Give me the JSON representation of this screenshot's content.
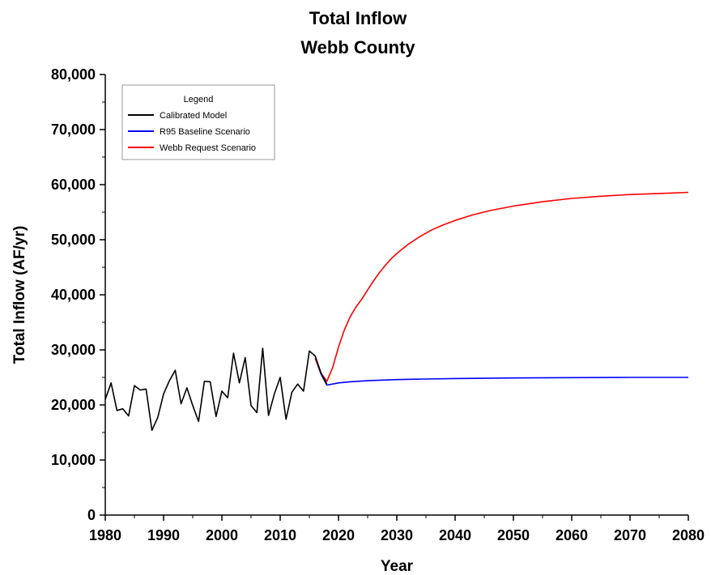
{
  "chart_data": {
    "type": "line",
    "title": [
      "Total Inflow",
      "Webb County"
    ],
    "xlabel": "Year",
    "ylabel": "Total Inflow (AF/yr)",
    "xlim": [
      1980,
      2080
    ],
    "ylim": [
      0,
      80000
    ],
    "x_ticks": [
      1980,
      1990,
      2000,
      2010,
      2020,
      2030,
      2040,
      2050,
      2060,
      2070,
      2080
    ],
    "x_tick_labels": [
      "1980",
      "1990",
      "2000",
      "2010",
      "2020",
      "2030",
      "2040",
      "2050",
      "2060",
      "2070",
      "2080"
    ],
    "y_ticks": [
      0,
      10000,
      20000,
      30000,
      40000,
      50000,
      60000,
      70000,
      80000
    ],
    "y_tick_labels": [
      "0",
      "10,000",
      "20,000",
      "30,000",
      "40,000",
      "50,000",
      "60,000",
      "70,000",
      "80,000"
    ],
    "grid": false,
    "legend": {
      "title": "Legend",
      "position": "top-left"
    },
    "series": [
      {
        "name": "Calibrated Model",
        "color": "#000000",
        "x": [
          1980,
          1981,
          1982,
          1983,
          1984,
          1985,
          1986,
          1987,
          1988,
          1989,
          1990,
          1991,
          1992,
          1993,
          1994,
          1995,
          1996,
          1997,
          1998,
          1999,
          2000,
          2001,
          2002,
          2003,
          2004,
          2005,
          2006,
          2007,
          2008,
          2009,
          2010,
          2011,
          2012,
          2013,
          2014,
          2015,
          2016,
          2017,
          2018
        ],
        "y": [
          21000,
          24000,
          19000,
          19300,
          18000,
          23500,
          22700,
          22900,
          15400,
          17700,
          22000,
          24400,
          26300,
          20200,
          23100,
          19900,
          17000,
          24300,
          24200,
          17900,
          22500,
          21300,
          29400,
          24000,
          28600,
          19900,
          18600,
          30300,
          18100,
          22000,
          25000,
          17400,
          22300,
          23800,
          22500,
          29800,
          28900,
          25800,
          23800
        ]
      },
      {
        "name": "R95 Baseline Scenario",
        "color": "#0000ff",
        "x": [
          2016,
          2017,
          2018,
          2019,
          2020,
          2022,
          2025,
          2030,
          2035,
          2040,
          2050,
          2060,
          2070,
          2080
        ],
        "y": [
          28500,
          25600,
          23600,
          23800,
          24000,
          24200,
          24400,
          24600,
          24700,
          24800,
          24900,
          24950,
          25000,
          25000
        ]
      },
      {
        "name": "Webb Request Scenario",
        "color": "#ff0000",
        "x": [
          2016,
          2017,
          2018,
          2019,
          2020,
          2021,
          2022,
          2023,
          2024,
          2025,
          2026,
          2027,
          2028,
          2029,
          2030,
          2032,
          2034,
          2036,
          2038,
          2040,
          2043,
          2046,
          2050,
          2055,
          2060,
          2065,
          2070,
          2075,
          2080
        ],
        "y": [
          28500,
          25800,
          24300,
          26800,
          30500,
          33600,
          36000,
          37800,
          39200,
          40900,
          42500,
          44000,
          45300,
          46500,
          47500,
          49200,
          50600,
          51800,
          52700,
          53500,
          54500,
          55300,
          56100,
          56900,
          57500,
          57900,
          58200,
          58400,
          58600
        ]
      }
    ]
  }
}
